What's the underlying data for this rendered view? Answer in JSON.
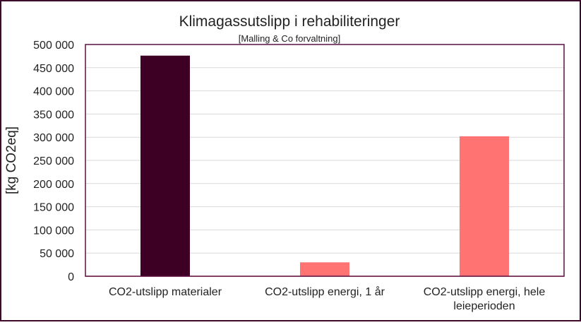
{
  "chart_data": {
    "type": "bar",
    "title": "Klimagassutslipp i rehabiliteringer",
    "subtitle": "[Malling & Co forvaltning]",
    "xlabel": "",
    "ylabel": "[kg CO2eq]",
    "ylim": [
      0,
      500000
    ],
    "yticks": [
      0,
      50000,
      100000,
      150000,
      200000,
      250000,
      300000,
      350000,
      400000,
      450000,
      500000
    ],
    "ytick_labels": [
      "0",
      "50 000",
      "100 000",
      "150 000",
      "200 000",
      "250 000",
      "300 000",
      "350 000",
      "400 000",
      "450 000",
      "500 000"
    ],
    "categories": [
      [
        "CO2-utslipp materialer"
      ],
      [
        "CO2-utslipp energi, 1 år"
      ],
      [
        "CO2-utslipp energi, hele",
        "leieperioden"
      ]
    ],
    "values": [
      476000,
      30000,
      302000
    ],
    "bar_colors": [
      "#3d0024",
      "#ff7373",
      "#ff7373"
    ],
    "frame_color": "#3d0a2c",
    "plot_frame_color": "#5a1040",
    "grid": true,
    "legend": "none"
  }
}
